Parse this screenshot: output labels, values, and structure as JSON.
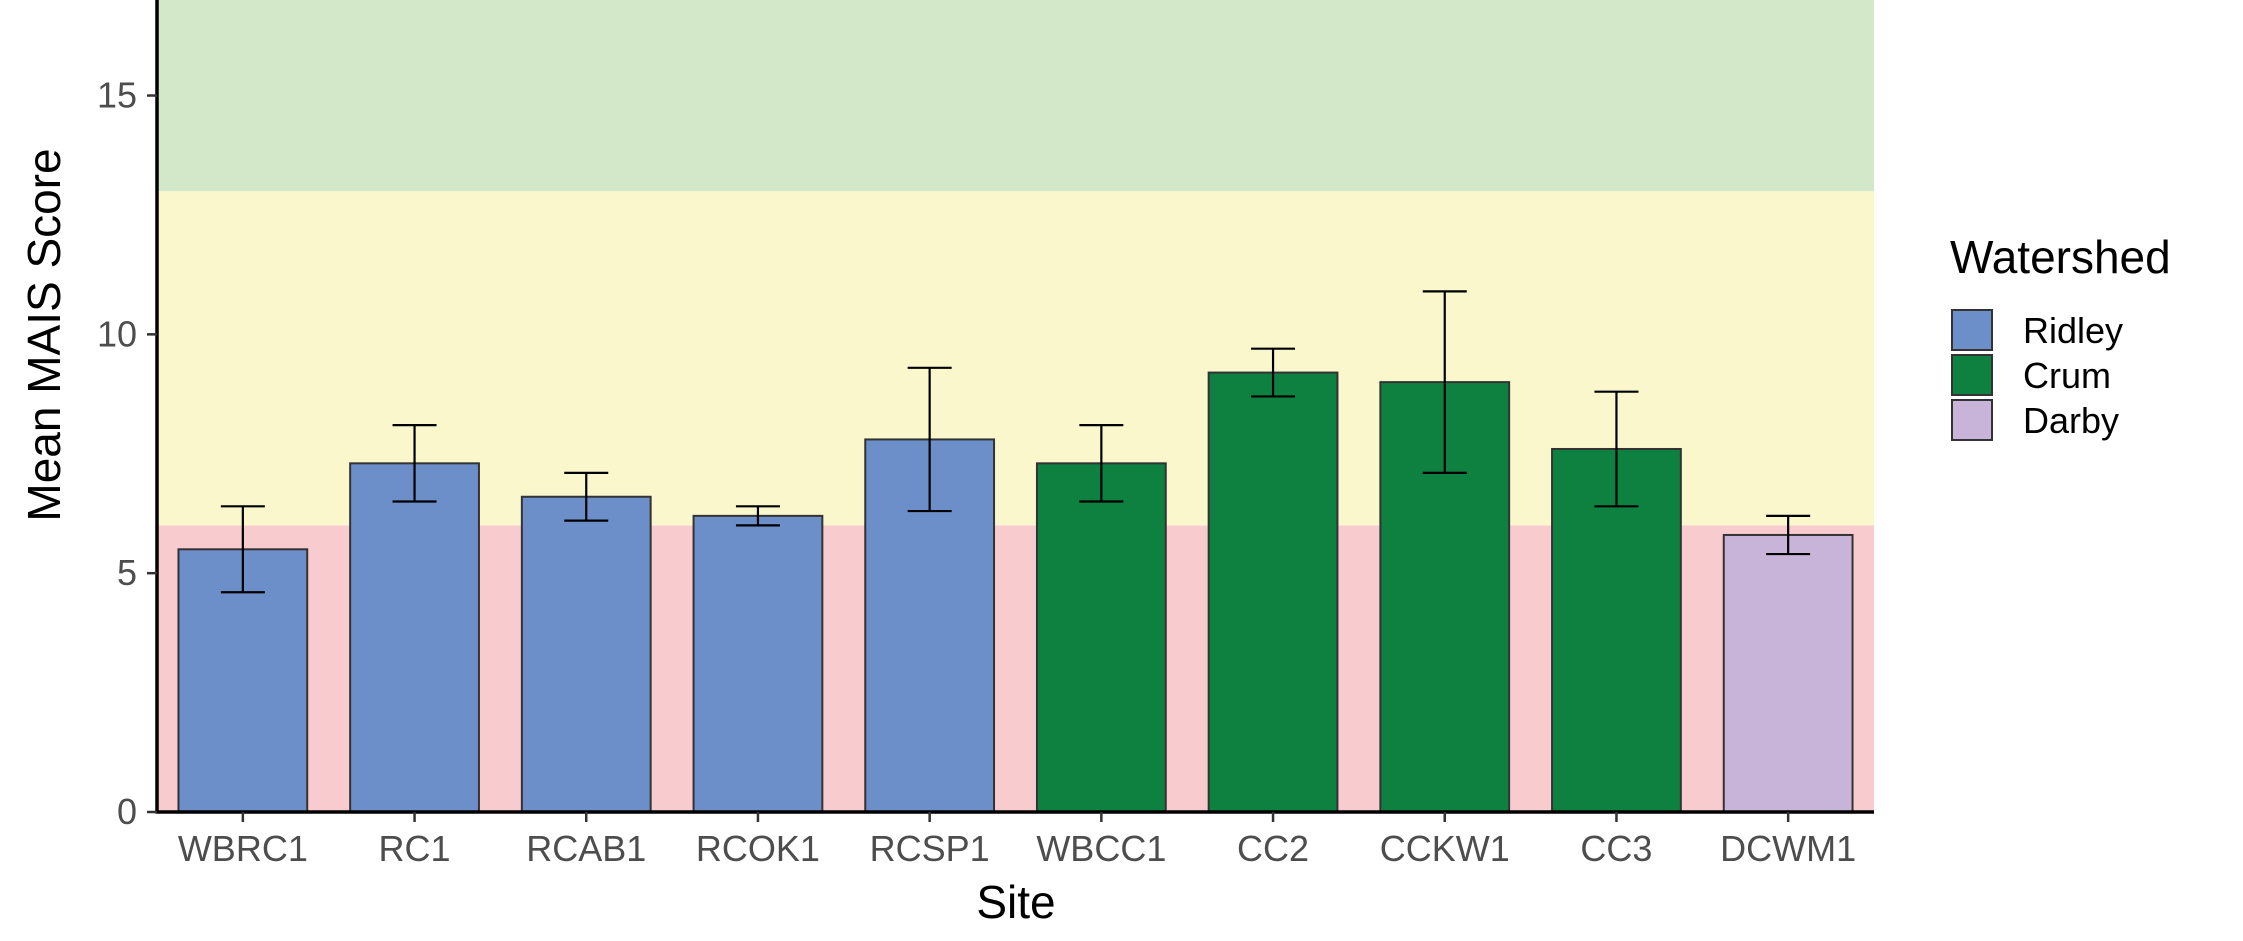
{
  "chart_data": {
    "type": "bar",
    "xlabel": "Site",
    "ylabel": "Mean MAIS Score",
    "ylim": [
      0,
      17
    ],
    "yticks": [
      0,
      5,
      10,
      15
    ],
    "grid": false,
    "categories": [
      "WBRC1",
      "RC1",
      "RCAB1",
      "RCOK1",
      "RCSP1",
      "WBCC1",
      "CC2",
      "CCKW1",
      "CC3",
      "DCWM1"
    ],
    "values": [
      5.5,
      7.3,
      6.6,
      6.2,
      7.8,
      7.3,
      9.2,
      9.0,
      7.6,
      5.8
    ],
    "error_low": [
      4.6,
      6.5,
      6.1,
      6.0,
      6.3,
      6.5,
      8.7,
      7.1,
      6.4,
      5.4
    ],
    "error_high": [
      6.4,
      8.1,
      7.1,
      6.4,
      9.3,
      8.1,
      9.7,
      10.9,
      8.8,
      6.2
    ],
    "groups": [
      "Ridley",
      "Ridley",
      "Ridley",
      "Ridley",
      "Ridley",
      "Crum",
      "Crum",
      "Crum",
      "Crum",
      "Darby"
    ],
    "background_bands": [
      {
        "from": 0,
        "to": 6,
        "color": "#f8cccf"
      },
      {
        "from": 6,
        "to": 13,
        "color": "#faf7cd"
      },
      {
        "from": 13,
        "to": 17,
        "color": "#d3e8c8"
      }
    ],
    "legend": {
      "title": "Watershed",
      "position": "right",
      "entries": [
        {
          "label": "Ridley",
          "color": "#6d8fc9"
        },
        {
          "label": "Crum",
          "color": "#0e8140"
        },
        {
          "label": "Darby",
          "color": "#c8b4d8"
        }
      ]
    }
  }
}
